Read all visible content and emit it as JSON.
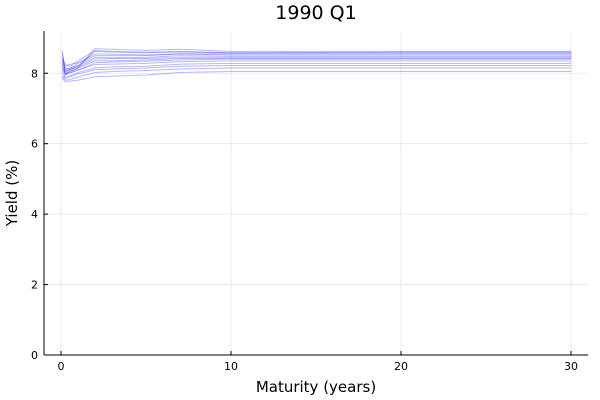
{
  "chart_data": {
    "type": "line",
    "title": "1990 Q1",
    "xlabel": "Maturity (years)",
    "ylabel": "Yield (%)",
    "xlim": [
      -1,
      31
    ],
    "ylim": [
      0,
      9.2
    ],
    "xticks": [
      0,
      10,
      20,
      30
    ],
    "yticks": [
      0,
      2,
      4,
      6,
      8
    ],
    "grid": true,
    "legend": "none",
    "series_color": "#0000ff",
    "maturities": [
      0.083,
      0.25,
      0.5,
      1,
      2,
      3,
      5,
      7,
      10,
      20,
      30
    ],
    "series": [
      {
        "values": [
          8.62,
          7.95,
          8.05,
          8.15,
          8.7,
          8.68,
          8.65,
          8.68,
          8.62,
          8.62,
          8.62
        ]
      },
      {
        "values": [
          8.55,
          8.05,
          8.1,
          8.2,
          8.62,
          8.6,
          8.58,
          8.62,
          8.58,
          8.6,
          8.6
        ]
      },
      {
        "values": [
          8.4,
          8.2,
          8.25,
          8.3,
          8.55,
          8.54,
          8.52,
          8.55,
          8.52,
          8.52,
          8.52
        ]
      },
      {
        "values": [
          8.35,
          8.1,
          8.15,
          8.22,
          8.45,
          8.44,
          8.45,
          8.5,
          8.48,
          8.48,
          8.48
        ]
      },
      {
        "values": [
          8.25,
          8.0,
          8.05,
          8.15,
          8.35,
          8.35,
          8.38,
          8.42,
          8.42,
          8.42,
          8.42
        ]
      },
      {
        "values": [
          8.15,
          7.95,
          8.0,
          8.1,
          8.25,
          8.26,
          8.28,
          8.33,
          8.35,
          8.35,
          8.35
        ]
      },
      {
        "values": [
          8.05,
          7.88,
          7.92,
          8.02,
          8.15,
          8.18,
          8.2,
          8.26,
          8.28,
          8.28,
          8.28
        ]
      },
      {
        "values": [
          7.95,
          7.85,
          7.9,
          7.98,
          8.1,
          8.12,
          8.15,
          8.2,
          8.22,
          8.22,
          8.22
        ]
      },
      {
        "values": [
          7.9,
          7.8,
          7.82,
          7.9,
          8.02,
          8.05,
          8.08,
          8.12,
          8.15,
          8.15,
          8.15
        ]
      },
      {
        "values": [
          7.85,
          7.75,
          7.78,
          7.8,
          7.9,
          7.92,
          7.95,
          8.02,
          8.05,
          8.05,
          8.05
        ]
      },
      {
        "values": [
          8.45,
          8.25,
          8.2,
          8.35,
          8.65,
          8.62,
          8.6,
          8.6,
          8.58,
          8.58,
          8.58
        ]
      },
      {
        "values": [
          8.3,
          8.15,
          8.12,
          8.28,
          8.5,
          8.5,
          8.5,
          8.55,
          8.55,
          8.55,
          8.55
        ]
      },
      {
        "values": [
          8.2,
          8.05,
          8.1,
          8.18,
          8.4,
          8.42,
          8.42,
          8.45,
          8.45,
          8.45,
          8.45
        ]
      },
      {
        "values": [
          8.1,
          8.0,
          8.02,
          8.08,
          8.3,
          8.32,
          8.34,
          8.38,
          8.4,
          8.4,
          8.4
        ]
      }
    ]
  }
}
